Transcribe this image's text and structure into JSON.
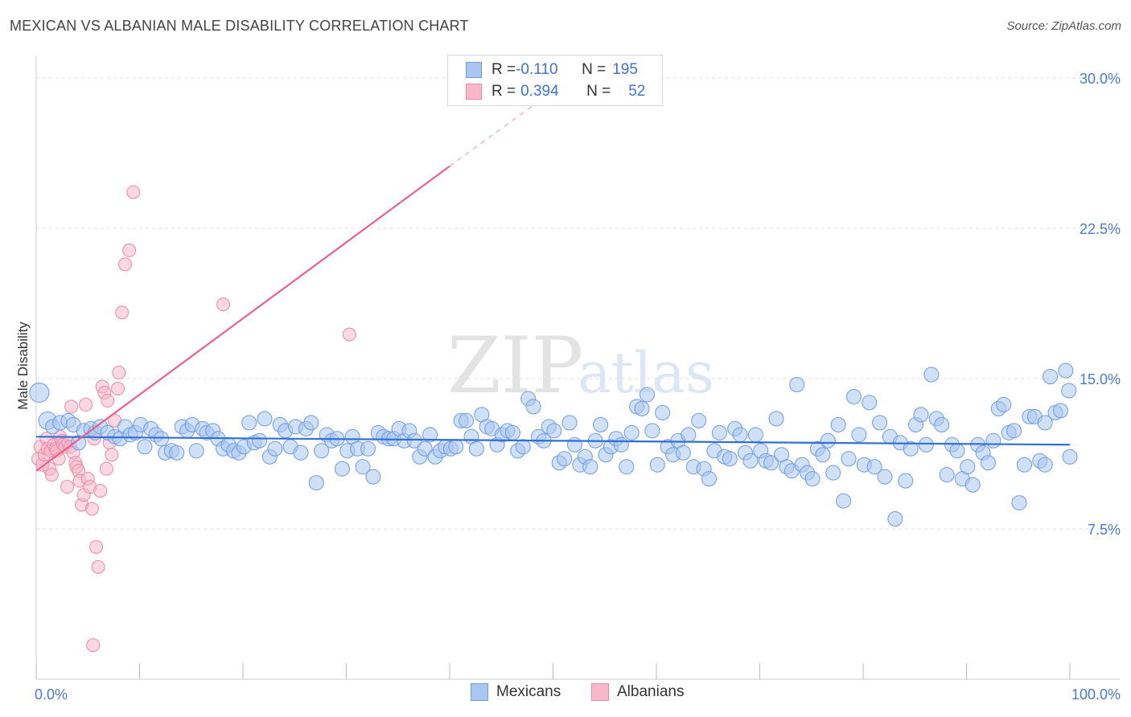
{
  "title": "MEXICAN VS ALBANIAN MALE DISABILITY CORRELATION CHART",
  "source": "Source: ZipAtlas.com",
  "watermark": {
    "zip": "ZIP",
    "atlas": "atlas"
  },
  "legend": {
    "rows": [
      {
        "r_label": "R = ",
        "r_value": "-0.110",
        "n_label": "N = ",
        "n_value": "195"
      },
      {
        "r_label": "R = ",
        "r_value": "0.394",
        "n_label": "N = ",
        "n_value": "52"
      }
    ]
  },
  "bottom_legend": {
    "mexicans": "Mexicans",
    "albanians": "Albanians"
  },
  "colors": {
    "blue_fill": "#a9c6f0",
    "blue_stroke": "#6f9be0",
    "blue_line": "#2f6fd6",
    "pink_fill": "#f7b8cb",
    "pink_stroke": "#ec8aa8",
    "pink_line": "#e8618c",
    "tick_text": "#4a7bd0",
    "grid": "#dddddd"
  },
  "chart_data": {
    "type": "scatter",
    "title": "MEXICAN VS ALBANIAN MALE DISABILITY CORRELATION CHART",
    "xlabel": "",
    "ylabel": "Male Disability",
    "xlim": [
      0,
      100
    ],
    "ylim": [
      0,
      31.5
    ],
    "x_tick_labels": [
      "0.0%",
      "100.0%"
    ],
    "y_ticks": [
      7.5,
      15.0,
      22.5,
      30.0
    ],
    "y_tick_labels": [
      "7.5%",
      "15.0%",
      "22.5%",
      "30.0%"
    ],
    "grid": true,
    "legend_position": "top-center",
    "series": [
      {
        "name": "Mexicans",
        "r": -0.11,
        "n": 195,
        "trend": {
          "x": [
            0,
            100
          ],
          "y": [
            12.1,
            11.7
          ]
        },
        "points": [
          [
            0.3,
            14.3
          ],
          [
            1.1,
            12.9
          ],
          [
            1.6,
            12.6
          ],
          [
            2.3,
            12.8
          ],
          [
            3.1,
            12.9
          ],
          [
            3.6,
            12.7
          ],
          [
            4.1,
            11.8
          ],
          [
            4.6,
            12.4
          ],
          [
            5.3,
            12.5
          ],
          [
            5.7,
            12.3
          ],
          [
            6.2,
            12.6
          ],
          [
            6.9,
            12.3
          ],
          [
            7.6,
            12.1
          ],
          [
            8.1,
            12.0
          ],
          [
            8.6,
            12.6
          ],
          [
            9.1,
            12.2
          ],
          [
            9.6,
            12.3
          ],
          [
            10.1,
            12.7
          ],
          [
            10.5,
            11.6
          ],
          [
            11.1,
            12.5
          ],
          [
            11.6,
            12.2
          ],
          [
            12.1,
            12.0
          ],
          [
            12.5,
            11.3
          ],
          [
            13.1,
            11.4
          ],
          [
            13.6,
            11.3
          ],
          [
            14.1,
            12.6
          ],
          [
            14.6,
            12.4
          ],
          [
            15.1,
            12.7
          ],
          [
            15.5,
            11.4
          ],
          [
            16.1,
            12.5
          ],
          [
            16.5,
            12.3
          ],
          [
            17.1,
            12.4
          ],
          [
            17.6,
            12.0
          ],
          [
            18.1,
            11.5
          ],
          [
            18.6,
            11.7
          ],
          [
            19.1,
            11.4
          ],
          [
            19.6,
            11.3
          ],
          [
            20.1,
            11.6
          ],
          [
            20.6,
            12.8
          ],
          [
            21.1,
            11.8
          ],
          [
            21.6,
            11.9
          ],
          [
            22.1,
            13.0
          ],
          [
            22.6,
            11.1
          ],
          [
            23.1,
            11.5
          ],
          [
            23.6,
            12.7
          ],
          [
            24.1,
            12.4
          ],
          [
            24.6,
            11.6
          ],
          [
            25.1,
            12.6
          ],
          [
            25.6,
            11.3
          ],
          [
            26.1,
            12.5
          ],
          [
            26.6,
            12.8
          ],
          [
            27.1,
            9.8
          ],
          [
            27.6,
            11.4
          ],
          [
            28.1,
            12.2
          ],
          [
            28.6,
            11.9
          ],
          [
            29.1,
            12.0
          ],
          [
            29.6,
            10.5
          ],
          [
            30.1,
            11.4
          ],
          [
            30.6,
            12.1
          ],
          [
            31.1,
            11.5
          ],
          [
            31.6,
            10.6
          ],
          [
            32.1,
            11.5
          ],
          [
            32.6,
            10.1
          ],
          [
            33.1,
            12.3
          ],
          [
            33.6,
            12.1
          ],
          [
            34.1,
            12.0
          ],
          [
            34.6,
            12.0
          ],
          [
            35.1,
            12.5
          ],
          [
            35.6,
            11.9
          ],
          [
            36.1,
            12.4
          ],
          [
            36.6,
            11.9
          ],
          [
            37.1,
            11.1
          ],
          [
            37.6,
            11.5
          ],
          [
            38.1,
            12.2
          ],
          [
            38.6,
            11.1
          ],
          [
            39.1,
            11.4
          ],
          [
            39.6,
            11.6
          ],
          [
            40.1,
            11.5
          ],
          [
            40.6,
            11.6
          ],
          [
            41.1,
            12.9
          ],
          [
            41.6,
            12.9
          ],
          [
            42.1,
            12.1
          ],
          [
            42.6,
            11.5
          ],
          [
            43.1,
            13.2
          ],
          [
            43.6,
            12.6
          ],
          [
            44.1,
            12.5
          ],
          [
            44.6,
            11.7
          ],
          [
            45.1,
            12.2
          ],
          [
            45.6,
            12.4
          ],
          [
            46.1,
            12.3
          ],
          [
            46.6,
            11.4
          ],
          [
            47.1,
            11.6
          ],
          [
            47.6,
            14.0
          ],
          [
            48.1,
            13.6
          ],
          [
            48.6,
            12.1
          ],
          [
            49.1,
            11.9
          ],
          [
            49.6,
            12.6
          ],
          [
            50.1,
            12.4
          ],
          [
            50.6,
            10.8
          ],
          [
            51.1,
            11.0
          ],
          [
            51.6,
            12.8
          ],
          [
            52.1,
            11.7
          ],
          [
            52.6,
            10.7
          ],
          [
            53.1,
            11.1
          ],
          [
            53.6,
            10.6
          ],
          [
            54.1,
            11.9
          ],
          [
            54.6,
            12.7
          ],
          [
            55.1,
            11.2
          ],
          [
            55.6,
            11.6
          ],
          [
            56.1,
            12.0
          ],
          [
            56.6,
            11.7
          ],
          [
            57.1,
            10.6
          ],
          [
            57.6,
            12.3
          ],
          [
            58.1,
            13.6
          ],
          [
            58.6,
            13.5
          ],
          [
            59.1,
            14.2
          ],
          [
            59.6,
            12.4
          ],
          [
            60.1,
            10.7
          ],
          [
            60.6,
            13.3
          ],
          [
            61.1,
            11.6
          ],
          [
            61.6,
            11.2
          ],
          [
            62.1,
            11.9
          ],
          [
            62.6,
            11.3
          ],
          [
            63.1,
            12.2
          ],
          [
            63.6,
            10.6
          ],
          [
            64.1,
            12.9
          ],
          [
            64.6,
            10.5
          ],
          [
            65.1,
            10.0
          ],
          [
            65.6,
            11.4
          ],
          [
            66.1,
            12.3
          ],
          [
            66.6,
            11.1
          ],
          [
            67.1,
            11.0
          ],
          [
            67.6,
            12.5
          ],
          [
            68.1,
            12.2
          ],
          [
            68.6,
            11.3
          ],
          [
            69.1,
            10.9
          ],
          [
            69.6,
            12.2
          ],
          [
            70.1,
            11.4
          ],
          [
            70.6,
            10.9
          ],
          [
            71.1,
            10.8
          ],
          [
            71.6,
            13.0
          ],
          [
            72.1,
            11.2
          ],
          [
            72.6,
            10.6
          ],
          [
            73.1,
            10.4
          ],
          [
            73.6,
            14.7
          ],
          [
            74.1,
            10.7
          ],
          [
            74.6,
            10.3
          ],
          [
            75.1,
            10.0
          ],
          [
            75.6,
            11.5
          ],
          [
            76.1,
            11.2
          ],
          [
            76.6,
            11.9
          ],
          [
            77.1,
            10.3
          ],
          [
            77.6,
            12.7
          ],
          [
            78.1,
            8.9
          ],
          [
            78.6,
            11.0
          ],
          [
            79.1,
            14.1
          ],
          [
            79.6,
            12.2
          ],
          [
            80.1,
            10.7
          ],
          [
            80.6,
            13.8
          ],
          [
            81.1,
            10.6
          ],
          [
            81.6,
            12.8
          ],
          [
            82.1,
            10.1
          ],
          [
            82.6,
            12.1
          ],
          [
            83.1,
            8.0
          ],
          [
            83.6,
            11.8
          ],
          [
            84.1,
            9.9
          ],
          [
            84.6,
            11.5
          ],
          [
            85.1,
            12.7
          ],
          [
            85.6,
            13.2
          ],
          [
            86.1,
            11.7
          ],
          [
            86.6,
            15.2
          ],
          [
            87.1,
            13.0
          ],
          [
            87.6,
            12.7
          ],
          [
            88.1,
            10.2
          ],
          [
            88.6,
            11.7
          ],
          [
            89.1,
            11.4
          ],
          [
            89.6,
            10.0
          ],
          [
            90.1,
            10.6
          ],
          [
            90.6,
            9.7
          ],
          [
            91.1,
            11.7
          ],
          [
            91.6,
            11.3
          ],
          [
            92.1,
            10.8
          ],
          [
            92.6,
            11.9
          ],
          [
            93.1,
            13.5
          ],
          [
            93.6,
            13.7
          ],
          [
            94.1,
            12.3
          ],
          [
            94.6,
            12.4
          ],
          [
            95.1,
            8.8
          ],
          [
            95.6,
            10.7
          ],
          [
            96.1,
            13.1
          ],
          [
            96.6,
            13.1
          ],
          [
            97.1,
            10.9
          ],
          [
            97.6,
            12.8
          ],
          [
            98.1,
            15.1
          ],
          [
            98.6,
            13.3
          ],
          [
            99.1,
            13.4
          ],
          [
            99.6,
            15.4
          ],
          [
            99.9,
            14.4
          ],
          [
            100.0,
            11.1
          ],
          [
            97.6,
            10.7
          ]
        ]
      },
      {
        "name": "Albanians",
        "r": 0.394,
        "n": 52,
        "trend": {
          "x": [
            0,
            40
          ],
          "y": [
            10.4,
            25.6
          ]
        },
        "trend_extension": {
          "x": [
            40,
            48
          ],
          "y": [
            25.6,
            28.6
          ]
        },
        "points": [
          [
            0.2,
            11.0
          ],
          [
            0.4,
            11.6
          ],
          [
            0.6,
            10.7
          ],
          [
            0.8,
            11.2
          ],
          [
            1.0,
            12.0
          ],
          [
            1.1,
            11.5
          ],
          [
            1.3,
            10.5
          ],
          [
            1.4,
            11.4
          ],
          [
            1.5,
            10.2
          ],
          [
            1.7,
            11.7
          ],
          [
            1.9,
            11.5
          ],
          [
            2.0,
            11.4
          ],
          [
            2.2,
            11.0
          ],
          [
            2.3,
            12.1
          ],
          [
            2.5,
            11.9
          ],
          [
            2.6,
            11.7
          ],
          [
            2.8,
            11.6
          ],
          [
            3.0,
            9.6
          ],
          [
            3.1,
            11.8
          ],
          [
            3.3,
            11.6
          ],
          [
            3.4,
            13.6
          ],
          [
            3.6,
            11.3
          ],
          [
            3.8,
            10.8
          ],
          [
            3.9,
            10.6
          ],
          [
            4.1,
            10.4
          ],
          [
            4.2,
            9.9
          ],
          [
            4.4,
            8.7
          ],
          [
            4.6,
            9.2
          ],
          [
            4.8,
            13.7
          ],
          [
            5.0,
            10.0
          ],
          [
            5.2,
            9.6
          ],
          [
            5.4,
            8.5
          ],
          [
            5.6,
            12.0
          ],
          [
            5.8,
            6.6
          ],
          [
            6.0,
            5.6
          ],
          [
            6.2,
            9.4
          ],
          [
            6.4,
            14.6
          ],
          [
            6.6,
            14.3
          ],
          [
            6.8,
            10.5
          ],
          [
            6.9,
            13.9
          ],
          [
            7.1,
            11.8
          ],
          [
            7.3,
            11.2
          ],
          [
            7.6,
            12.9
          ],
          [
            7.9,
            14.5
          ],
          [
            8.0,
            15.3
          ],
          [
            8.3,
            18.3
          ],
          [
            8.6,
            20.7
          ],
          [
            9.0,
            21.4
          ],
          [
            9.4,
            24.3
          ],
          [
            18.1,
            18.7
          ],
          [
            30.3,
            17.2
          ],
          [
            5.5,
            1.7
          ]
        ]
      }
    ]
  }
}
